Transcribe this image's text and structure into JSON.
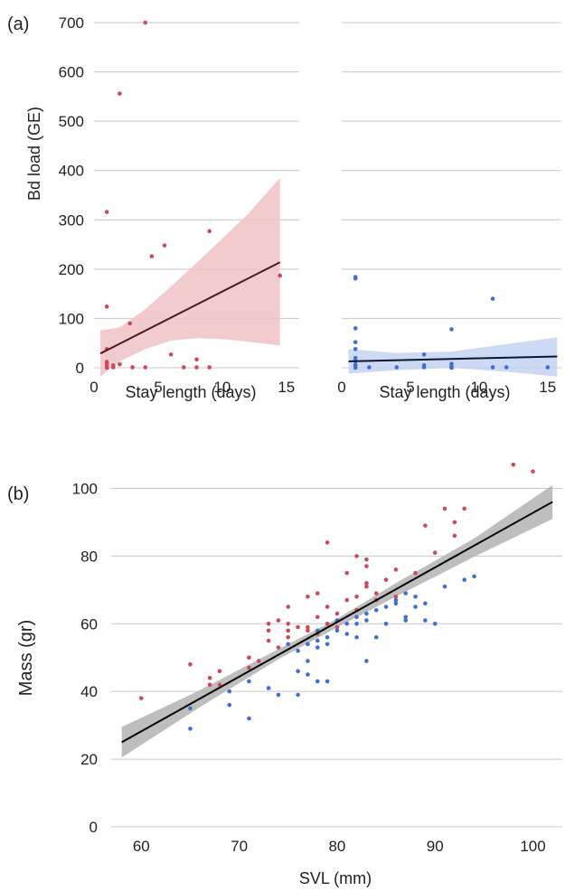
{
  "figure": {
    "panel_a_tag": "(a)",
    "panel_b_tag": "(b)"
  },
  "chart_data": [
    {
      "type": "scatter",
      "panel": "(a) left",
      "xlabel": "Stay length (days)",
      "ylabel": "Bd load (GE)",
      "xlim": [
        0,
        16
      ],
      "ylim": [
        0,
        700
      ],
      "xticks": [
        0,
        5,
        10,
        15
      ],
      "yticks": [
        0,
        100,
        200,
        300,
        400,
        500,
        600,
        700
      ],
      "grid": "horizontal",
      "point_color": "#cd4a5a",
      "band_color": "#f0c2c7",
      "line_color": "#4a1a22",
      "points": [
        [
          4,
          700
        ],
        [
          2,
          556
        ],
        [
          1,
          316
        ],
        [
          9,
          277
        ],
        [
          5.5,
          248
        ],
        [
          4.5,
          226
        ],
        [
          14.5,
          187
        ],
        [
          1,
          124
        ],
        [
          2.8,
          90
        ],
        [
          1,
          38
        ],
        [
          6,
          27
        ],
        [
          8,
          17
        ],
        [
          1,
          12
        ],
        [
          1,
          8
        ],
        [
          1.5,
          5
        ],
        [
          2,
          7
        ],
        [
          1,
          3
        ],
        [
          1.5,
          1
        ],
        [
          3,
          1
        ],
        [
          4,
          1
        ],
        [
          7,
          1
        ],
        [
          8,
          1
        ],
        [
          9,
          1
        ],
        [
          1,
          0
        ]
      ],
      "fit": {
        "x": [
          0.5,
          14.5
        ],
        "y": [
          29,
          214
        ]
      },
      "ci_band": {
        "x": [
          0.5,
          2,
          4,
          6,
          8,
          10,
          12,
          14.5
        ],
        "lower": [
          -18,
          13,
          38,
          55,
          60,
          58,
          53,
          45
        ],
        "upper": [
          76,
          82,
          119,
          165,
          213,
          262,
          312,
          385
        ]
      }
    },
    {
      "type": "scatter",
      "panel": "(a) right",
      "xlabel": "Stay length (days)",
      "ylabel": "",
      "xlim": [
        0,
        16
      ],
      "ylim": [
        0,
        700
      ],
      "xticks": [
        0,
        5,
        10,
        15
      ],
      "yticks": [
        0,
        100,
        200,
        300,
        400,
        500,
        600,
        700
      ],
      "grid": "horizontal",
      "point_color": "#3f6fd6",
      "band_color": "#c5d3f2",
      "line_color": "#0a1830",
      "points": [
        [
          1,
          184
        ],
        [
          1,
          181
        ],
        [
          11,
          140
        ],
        [
          1,
          80
        ],
        [
          8,
          78
        ],
        [
          1,
          52
        ],
        [
          1,
          38
        ],
        [
          6,
          27
        ],
        [
          1,
          20
        ],
        [
          1,
          14
        ],
        [
          8,
          8
        ],
        [
          1,
          6
        ],
        [
          6,
          5
        ],
        [
          8,
          3
        ],
        [
          1,
          2
        ],
        [
          2,
          1
        ],
        [
          4,
          1
        ],
        [
          6,
          1
        ],
        [
          11,
          1
        ],
        [
          12,
          1
        ],
        [
          15,
          1
        ],
        [
          1,
          0
        ],
        [
          8,
          0
        ]
      ],
      "fit": {
        "x": [
          0.5,
          15.7
        ],
        "y": [
          13,
          23
        ]
      },
      "ci_band": {
        "x": [
          0.5,
          4,
          8,
          12,
          15.7
        ],
        "lower": [
          -12,
          -5,
          0,
          -8,
          -18
        ],
        "upper": [
          38,
          30,
          33,
          48,
          62
        ]
      }
    },
    {
      "type": "scatter",
      "panel": "(b)",
      "xlabel": "SVL (mm)",
      "ylabel": "Mass (gr)",
      "xlim": [
        56,
        103
      ],
      "ylim": [
        0,
        110
      ],
      "xticks": [
        60,
        70,
        80,
        90,
        100
      ],
      "yticks": [
        0,
        20,
        40,
        60,
        80,
        100
      ],
      "grid": "horizontal",
      "band_color": "#b3b3b3",
      "line_color": "#000000",
      "series": [
        {
          "color": "#cd4a5a",
          "points": [
            [
              60,
              38
            ],
            [
              65,
              48
            ],
            [
              67,
              44
            ],
            [
              67,
              42
            ],
            [
              68,
              46
            ],
            [
              68,
              42
            ],
            [
              71,
              50
            ],
            [
              71,
              47
            ],
            [
              72,
              49
            ],
            [
              73,
              60
            ],
            [
              73,
              58
            ],
            [
              73,
              55
            ],
            [
              74,
              61
            ],
            [
              74,
              53
            ],
            [
              75,
              65
            ],
            [
              75,
              60
            ],
            [
              75,
              58
            ],
            [
              75,
              56
            ],
            [
              76,
              59
            ],
            [
              77,
              68
            ],
            [
              77,
              59
            ],
            [
              77,
              58
            ],
            [
              78,
              69
            ],
            [
              78,
              62
            ],
            [
              78,
              57
            ],
            [
              79,
              84
            ],
            [
              79,
              65
            ],
            [
              79,
              60
            ],
            [
              80,
              63
            ],
            [
              80,
              61
            ],
            [
              80,
              59
            ],
            [
              81,
              75
            ],
            [
              81,
              67
            ],
            [
              82,
              80
            ],
            [
              82,
              68
            ],
            [
              82,
              64
            ],
            [
              83,
              79
            ],
            [
              83,
              77
            ],
            [
              83,
              72
            ],
            [
              83,
              71
            ],
            [
              84,
              69
            ],
            [
              84,
              67
            ],
            [
              85,
              73
            ],
            [
              86,
              76
            ],
            [
              86,
              68
            ],
            [
              88,
              75
            ],
            [
              89,
              89
            ],
            [
              90,
              81
            ],
            [
              91,
              94
            ],
            [
              92,
              90
            ],
            [
              92,
              86
            ],
            [
              93,
              94
            ],
            [
              98,
              107
            ],
            [
              100,
              105
            ]
          ]
        },
        {
          "color": "#3f6fd6",
          "points": [
            [
              65,
              35
            ],
            [
              65,
              29
            ],
            [
              69,
              40
            ],
            [
              69,
              36
            ],
            [
              71,
              43
            ],
            [
              71,
              32
            ],
            [
              73,
              41
            ],
            [
              74,
              39
            ],
            [
              75,
              54
            ],
            [
              76,
              46
            ],
            [
              76,
              39
            ],
            [
              76,
              52
            ],
            [
              77,
              54
            ],
            [
              77,
              49
            ],
            [
              77,
              45
            ],
            [
              78,
              58
            ],
            [
              78,
              55
            ],
            [
              78,
              53
            ],
            [
              78,
              43
            ],
            [
              79,
              56
            ],
            [
              79,
              54
            ],
            [
              79,
              43
            ],
            [
              80,
              58
            ],
            [
              80,
              61
            ],
            [
              81,
              60
            ],
            [
              81,
              57
            ],
            [
              82,
              62
            ],
            [
              82,
              56
            ],
            [
              82,
              60
            ],
            [
              83,
              63
            ],
            [
              83,
              61
            ],
            [
              83,
              49
            ],
            [
              84,
              64
            ],
            [
              84,
              56
            ],
            [
              85,
              65
            ],
            [
              85,
              60
            ],
            [
              86,
              67
            ],
            [
              86,
              66
            ],
            [
              87,
              69
            ],
            [
              87,
              62
            ],
            [
              87,
              61
            ],
            [
              88,
              68
            ],
            [
              88,
              65
            ],
            [
              89,
              66
            ],
            [
              89,
              61
            ],
            [
              90,
              60
            ],
            [
              91,
              71
            ],
            [
              93,
              73
            ],
            [
              94,
              74
            ]
          ]
        }
      ],
      "fit": {
        "x": [
          58,
          102
        ],
        "y": [
          25,
          96
        ]
      },
      "ci_band": {
        "x": [
          58,
          66,
          74,
          80,
          86,
          94,
          102
        ],
        "lower": [
          20.5,
          35.4,
          49.5,
          58.9,
          68.0,
          79.8,
          91.0
        ],
        "upper": [
          29.5,
          40.4,
          52.5,
          61.5,
          72.0,
          85.2,
          101.0
        ]
      }
    }
  ]
}
